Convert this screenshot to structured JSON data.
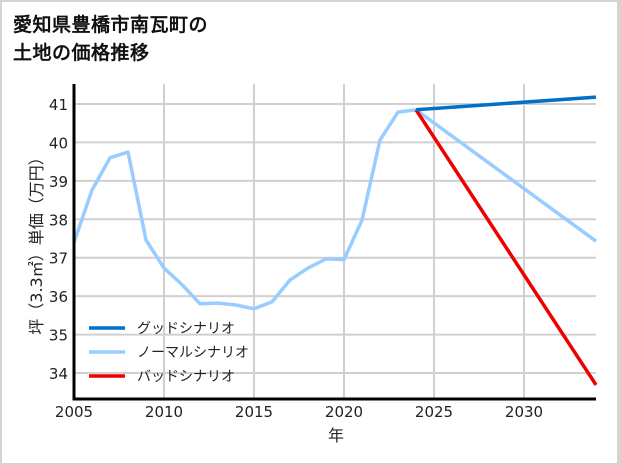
{
  "title": {
    "line1": "愛知県豊橋市南瓦町の",
    "line2": "土地の価格推移"
  },
  "chart_data": {
    "type": "line",
    "title": "愛知県豊橋市南瓦町の土地の価格推移",
    "xlabel": "年",
    "ylabel": "坪（3.3㎡）単価（万円）",
    "xlim": [
      2005,
      2034
    ],
    "ylim": [
      33.3,
      41.5
    ],
    "x_ticks": [
      2005,
      2010,
      2015,
      2020,
      2025,
      2030
    ],
    "y_ticks": [
      34,
      35,
      36,
      37,
      38,
      39,
      40,
      41
    ],
    "grid": true,
    "legend_position": "lower left",
    "series": [
      {
        "name": "グッドシナリオ",
        "color": "#0070c8",
        "x": [
          2024,
          2034
        ],
        "values": [
          40.85,
          41.18
        ]
      },
      {
        "name": "ノーマルシナリオ",
        "color": "#99ccff",
        "x": [
          2005,
          2006,
          2007,
          2008,
          2009,
          2010,
          2011,
          2012,
          2013,
          2014,
          2015,
          2016,
          2017,
          2018,
          2019,
          2020,
          2021,
          2022,
          2023,
          2024,
          2034
        ],
        "values": [
          37.4,
          38.76,
          39.6,
          39.75,
          37.46,
          36.73,
          36.3,
          35.8,
          35.82,
          35.77,
          35.67,
          35.85,
          36.42,
          36.73,
          36.97,
          36.95,
          37.98,
          40.06,
          40.79,
          40.85,
          37.43
        ]
      },
      {
        "name": "バッドシナリオ",
        "color": "#ee0000",
        "x": [
          2024,
          2034
        ],
        "values": [
          40.85,
          33.69
        ]
      }
    ]
  }
}
